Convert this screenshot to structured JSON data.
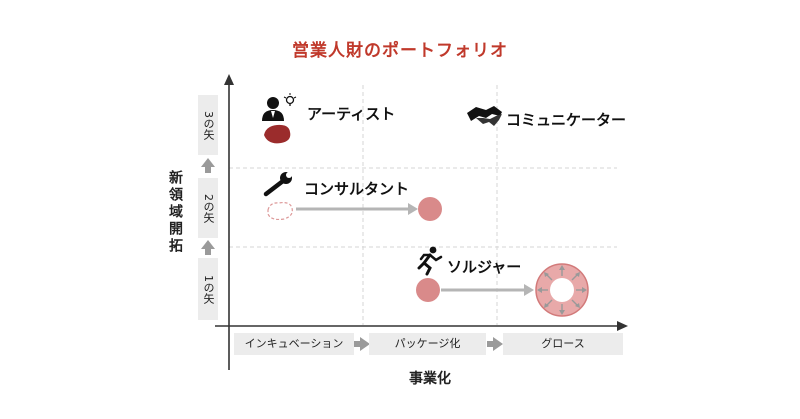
{
  "title": "営業人財のポートフォリオ",
  "axes": {
    "y_label": "新領域開拓",
    "x_label": "事業化",
    "levels": [
      "1の矢",
      "2の矢",
      "3の矢"
    ],
    "stages": [
      "インキュベーション",
      "パッケージ化",
      "グロース"
    ]
  },
  "roles": {
    "artist": "アーティスト",
    "consultant": "コンサルタント",
    "soldier": "ソルジャー",
    "communicator": "コミュニケーター"
  },
  "colors": {
    "title": "#c0392b",
    "accent_dark": "#9b2c2c",
    "circle_fill": "#d98a8a",
    "arrow": "#b5b5b5",
    "box_bg": "#ececec"
  },
  "icons": {
    "artist": "person-lightbulb-icon",
    "consultant": "wrench-icon",
    "soldier": "running-person-icon",
    "communicator": "handshake-icon",
    "growth": "expanding-ring-icon"
  }
}
